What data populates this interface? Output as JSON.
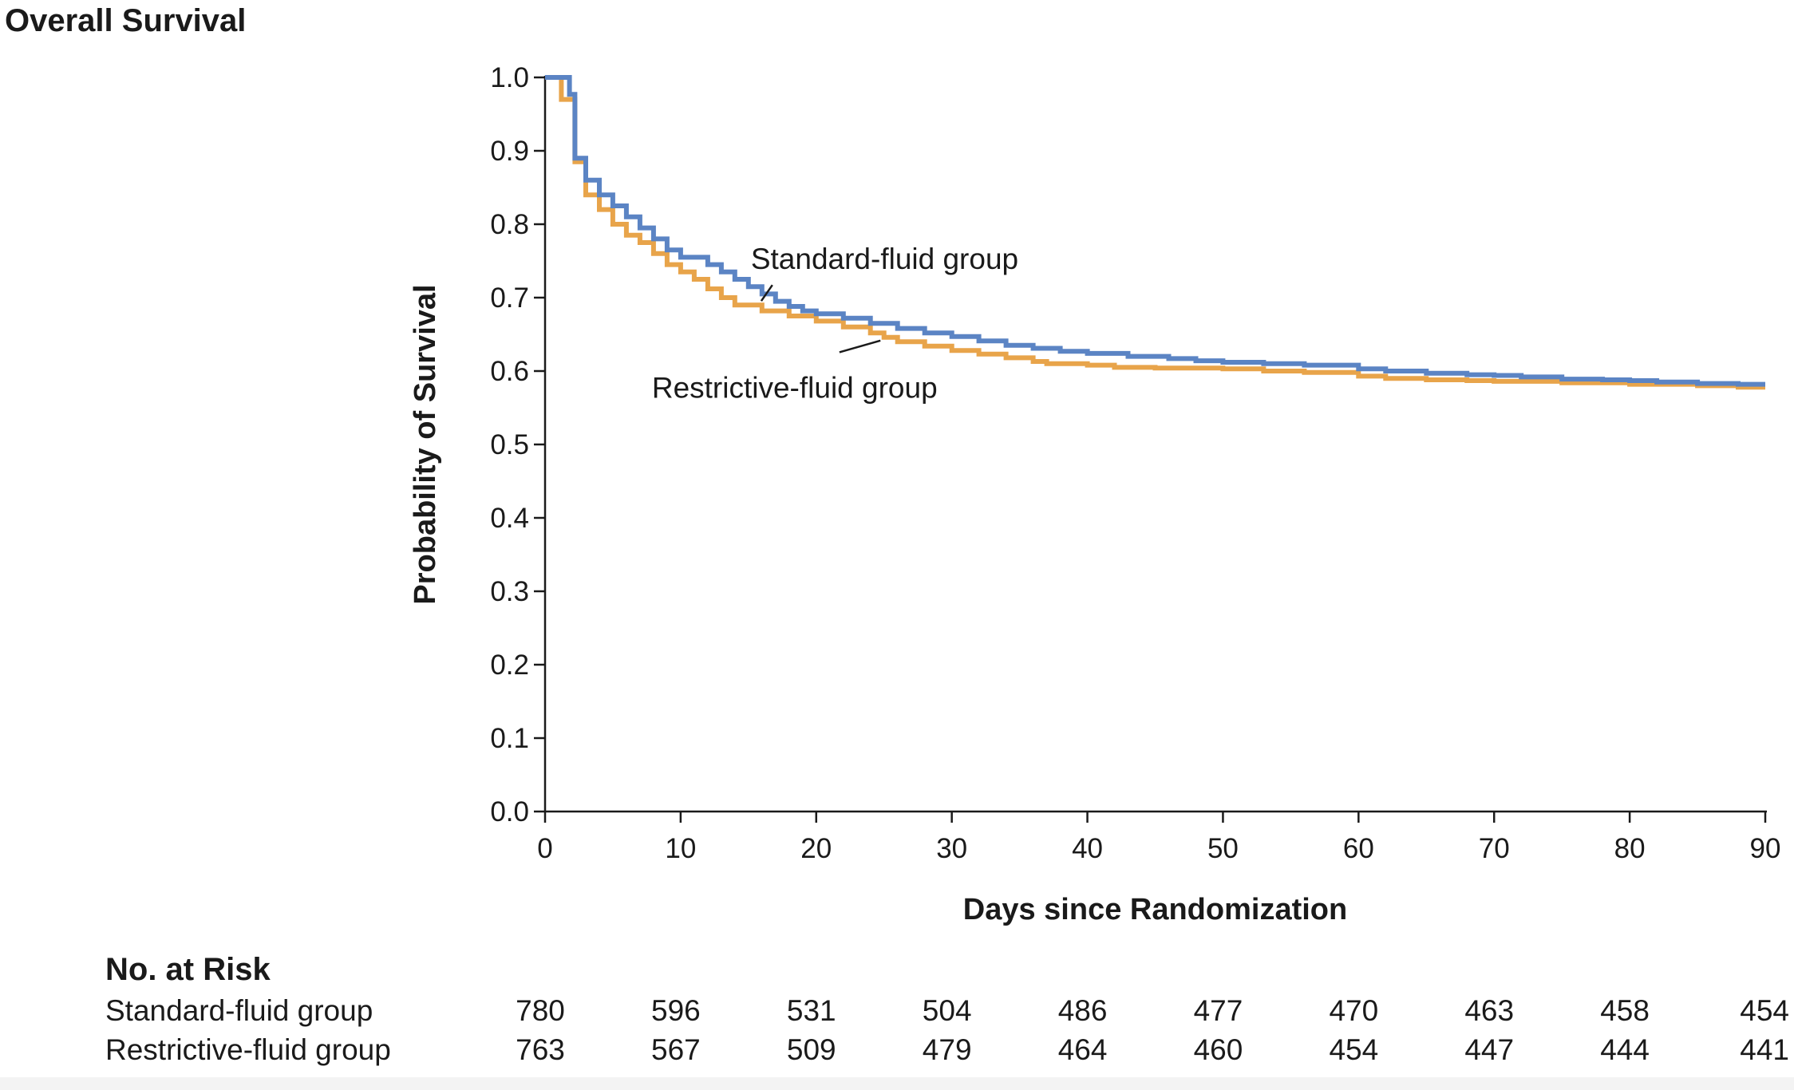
{
  "chart_data": {
    "type": "line",
    "title": "Overall Survival",
    "xlabel": "Days since Randomization",
    "ylabel": "Probability of Survival",
    "xlim": [
      0,
      90
    ],
    "ylim": [
      0.0,
      1.0
    ],
    "x_ticks": [
      0,
      10,
      20,
      30,
      40,
      50,
      60,
      70,
      80,
      90
    ],
    "x_tick_labels": [
      "0",
      "10",
      "20",
      "30",
      "40",
      "50",
      "60",
      "70",
      "80",
      "90"
    ],
    "y_ticks": [
      0.0,
      0.1,
      0.2,
      0.3,
      0.4,
      0.5,
      0.6,
      0.7,
      0.8,
      0.9,
      1.0
    ],
    "y_tick_labels": [
      "0.0",
      "0.1",
      "0.2",
      "0.3",
      "0.4",
      "0.5",
      "0.6",
      "0.7",
      "0.8",
      "0.9",
      "1.0"
    ],
    "grid": false,
    "line_style": "step",
    "series": [
      {
        "name": "Standard-fluid group",
        "color": "#5b84c4",
        "points": [
          [
            0,
            1.0
          ],
          [
            1.8,
            0.977
          ],
          [
            2.2,
            0.89
          ],
          [
            3,
            0.86
          ],
          [
            4,
            0.84
          ],
          [
            5,
            0.825
          ],
          [
            6,
            0.81
          ],
          [
            7,
            0.795
          ],
          [
            8,
            0.78
          ],
          [
            9,
            0.765
          ],
          [
            10,
            0.755
          ],
          [
            12,
            0.745
          ],
          [
            13,
            0.735
          ],
          [
            14,
            0.725
          ],
          [
            15,
            0.715
          ],
          [
            16,
            0.705
          ],
          [
            17,
            0.695
          ],
          [
            18,
            0.688
          ],
          [
            19,
            0.682
          ],
          [
            20,
            0.678
          ],
          [
            22,
            0.672
          ],
          [
            24,
            0.665
          ],
          [
            26,
            0.658
          ],
          [
            28,
            0.652
          ],
          [
            30,
            0.647
          ],
          [
            32,
            0.641
          ],
          [
            34,
            0.635
          ],
          [
            36,
            0.631
          ],
          [
            38,
            0.627
          ],
          [
            40,
            0.624
          ],
          [
            43,
            0.62
          ],
          [
            46,
            0.617
          ],
          [
            48,
            0.614
          ],
          [
            50,
            0.612
          ],
          [
            53,
            0.61
          ],
          [
            56,
            0.608
          ],
          [
            60,
            0.603
          ],
          [
            62,
            0.6
          ],
          [
            65,
            0.597
          ],
          [
            68,
            0.595
          ],
          [
            70,
            0.594
          ],
          [
            72,
            0.592
          ],
          [
            75,
            0.589
          ],
          [
            78,
            0.588
          ],
          [
            80,
            0.587
          ],
          [
            82,
            0.585
          ],
          [
            85,
            0.583
          ],
          [
            88,
            0.582
          ],
          [
            90,
            0.582
          ]
        ]
      },
      {
        "name": "Restrictive-fluid group",
        "color": "#e8a44a",
        "points": [
          [
            0,
            1.0
          ],
          [
            1.2,
            0.97
          ],
          [
            2.2,
            0.885
          ],
          [
            3,
            0.84
          ],
          [
            4,
            0.82
          ],
          [
            5,
            0.8
          ],
          [
            6,
            0.785
          ],
          [
            7,
            0.775
          ],
          [
            8,
            0.76
          ],
          [
            9,
            0.745
          ],
          [
            10,
            0.735
          ],
          [
            11,
            0.725
          ],
          [
            12,
            0.712
          ],
          [
            13,
            0.7
          ],
          [
            14,
            0.69
          ],
          [
            16,
            0.682
          ],
          [
            18,
            0.675
          ],
          [
            20,
            0.668
          ],
          [
            22,
            0.66
          ],
          [
            24,
            0.652
          ],
          [
            25,
            0.646
          ],
          [
            26,
            0.64
          ],
          [
            28,
            0.634
          ],
          [
            30,
            0.628
          ],
          [
            32,
            0.623
          ],
          [
            34,
            0.618
          ],
          [
            36,
            0.613
          ],
          [
            37,
            0.61
          ],
          [
            40,
            0.608
          ],
          [
            42,
            0.605
          ],
          [
            45,
            0.604
          ],
          [
            50,
            0.603
          ],
          [
            53,
            0.6
          ],
          [
            56,
            0.598
          ],
          [
            60,
            0.593
          ],
          [
            62,
            0.59
          ],
          [
            65,
            0.588
          ],
          [
            68,
            0.587
          ],
          [
            70,
            0.586
          ],
          [
            75,
            0.584
          ],
          [
            80,
            0.582
          ],
          [
            85,
            0.58
          ],
          [
            88,
            0.578
          ],
          [
            90,
            0.578
          ]
        ]
      }
    ],
    "annotations": [
      {
        "text": "Standard-fluid group",
        "series": 0,
        "pointer_to": [
          16.3,
          0.702
        ],
        "label_at": [
          15,
          0.765
        ]
      },
      {
        "text": "Restrictive-fluid group",
        "series": 1,
        "pointer_to": [
          24.5,
          0.648
        ],
        "label_at": [
          12,
          0.58
        ]
      }
    ],
    "risk_table": {
      "title": "No. at Risk",
      "days": [
        0,
        10,
        20,
        30,
        40,
        50,
        60,
        70,
        80,
        90
      ],
      "rows": [
        {
          "label": "Standard-fluid group",
          "values": [
            "780",
            "596",
            "531",
            "504",
            "486",
            "477",
            "470",
            "463",
            "458",
            "454"
          ]
        },
        {
          "label": "Restrictive-fluid group",
          "values": [
            "763",
            "567",
            "509",
            "479",
            "464",
            "460",
            "454",
            "447",
            "444",
            "441"
          ]
        }
      ]
    }
  }
}
